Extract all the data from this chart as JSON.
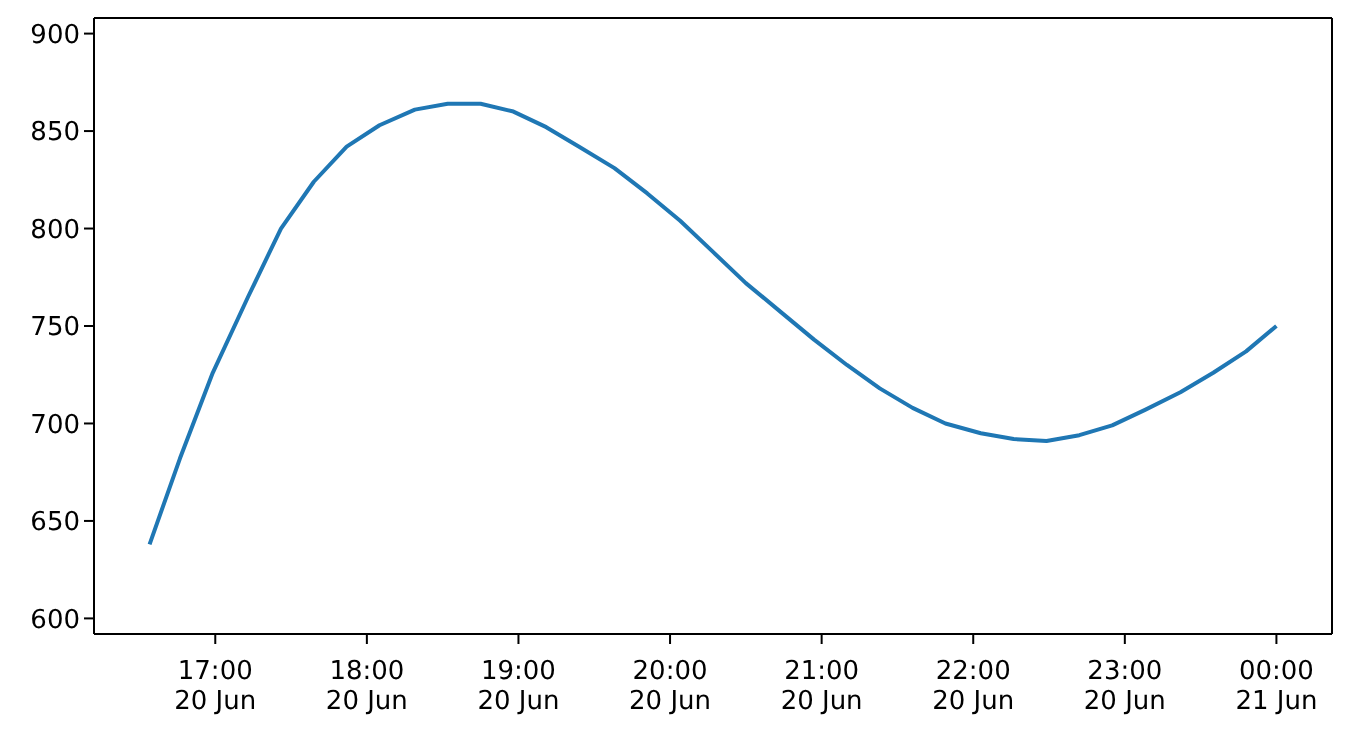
{
  "chart_data": {
    "type": "line",
    "x": [
      "--06-20T16:34",
      "--06-20T16:46",
      "--06-20T16:59",
      "--06-20T17:13",
      "--06-20T17:26",
      "--06-20T17:39",
      "--06-20T17:52",
      "--06-20T18:05",
      "--06-20T18:19",
      "--06-20T18:32",
      "--06-20T18:45",
      "--06-20T18:58",
      "--06-20T19:11",
      "--06-20T19:24",
      "--06-20T19:38",
      "--06-20T19:51",
      "--06-20T20:04",
      "--06-20T20:17",
      "--06-20T20:30",
      "--06-20T20:44",
      "--06-20T20:57",
      "--06-20T21:10",
      "--06-20T21:23",
      "--06-20T21:36",
      "--06-20T21:49",
      "--06-20T22:03",
      "--06-20T22:16",
      "--06-20T22:29",
      "--06-20T22:42",
      "--06-20T22:55",
      "--06-20T23:08",
      "--06-20T23:22",
      "--06-20T23:35",
      "--06-20T23:48",
      "--06-21T00:00"
    ],
    "series": [
      {
        "color": "#1f77b4",
        "values": [
          638,
          682,
          726,
          765,
          800,
          824,
          842,
          853,
          861,
          864,
          864,
          860,
          852,
          842,
          831,
          818,
          804,
          788,
          772,
          757,
          743,
          730,
          718,
          708,
          700,
          695,
          692,
          691,
          694,
          699,
          707,
          716,
          726,
          737,
          750
        ]
      }
    ],
    "xlim": [
      "--06-20T16:12",
      "--06-21T00:22"
    ],
    "xticks": [
      {
        "value": "--06-20T17:00",
        "label": "17:00\n20 Jun"
      },
      {
        "value": "--06-20T18:00",
        "label": "18:00\n20 Jun"
      },
      {
        "value": "--06-20T19:00",
        "label": "19:00\n20 Jun"
      },
      {
        "value": "--06-20T20:00",
        "label": "20:00\n20 Jun"
      },
      {
        "value": "--06-20T21:00",
        "label": "21:00\n20 Jun"
      },
      {
        "value": "--06-20T22:00",
        "label": "22:00\n20 Jun"
      },
      {
        "value": "--06-20T23:00",
        "label": "23:00\n20 Jun"
      },
      {
        "value": "--06-21T00:00",
        "label": "00:00\n21 Jun"
      }
    ],
    "ylim": [
      592,
      908
    ],
    "yticks": [
      600,
      650,
      700,
      750,
      800,
      850,
      900
    ],
    "grid": false,
    "legend": false
  }
}
